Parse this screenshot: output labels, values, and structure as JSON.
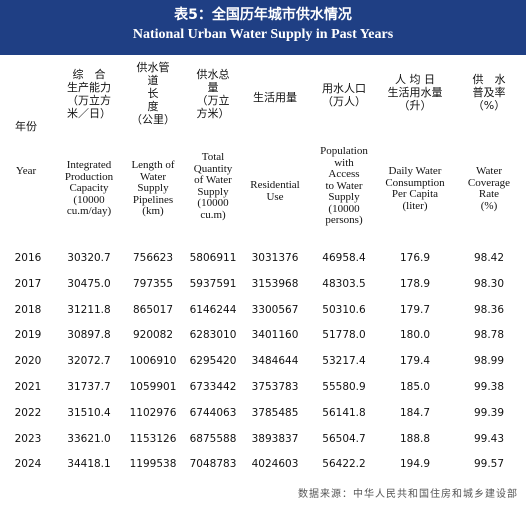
{
  "title": {
    "cn": "表5：全国历年城市供水情况",
    "en": "National Urban Water Supply in Past Years"
  },
  "headers": [
    {
      "cn": "年份",
      "en": "Year"
    },
    {
      "cn": "综　合\n生产能力\n（万立方\n米／日）",
      "en": "Integrated\nProduction\nCapacity\n(10000\ncu.m/day)"
    },
    {
      "cn": "供水管\n道\n长\n度\n（公里）",
      "en": "Length of\nWater\nSupply\nPipelines\n(km)"
    },
    {
      "cn": "供水总\n量\n（万立\n方米）",
      "en": "Total\nQuantity\nof Water\nSupply\n(10000\ncu.m)"
    },
    {
      "cn": "生活用量",
      "en": "Residential\nUse"
    },
    {
      "cn": "用水人口\n（万人）",
      "en": "Population\nwith\nAccess\nto Water\nSupply\n(10000\npersons)"
    },
    {
      "cn": "人 均 日\n生活用水量\n（升）",
      "en": "Daily Water\nConsumption\nPer Capita\n(liter)"
    },
    {
      "cn": "供　水\n普及率\n（%）",
      "en": "Water\nCoverage\nRate\n(%)"
    }
  ],
  "rows": [
    [
      "2016",
      "30320.7",
      "756623",
      "5806911",
      "3031376",
      "46958.4",
      "176.9",
      "98.42"
    ],
    [
      "2017",
      "30475.0",
      "797355",
      "5937591",
      "3153968",
      "48303.5",
      "178.9",
      "98.30"
    ],
    [
      "2018",
      "31211.8",
      "865017",
      "6146244",
      "3300567",
      "50310.6",
      "179.7",
      "98.36"
    ],
    [
      "2019",
      "30897.8",
      "920082",
      "6283010",
      "3401160",
      "51778.0",
      "180.0",
      "98.78"
    ],
    [
      "2020",
      "32072.7",
      "1006910",
      "6295420",
      "3484644",
      "53217.4",
      "179.4",
      "98.99"
    ],
    [
      "2021",
      "31737.7",
      "1059901",
      "6733442",
      "3753783",
      "55580.9",
      "185.0",
      "99.38"
    ],
    [
      "2022",
      "31510.4",
      "1102976",
      "6744063",
      "3785485",
      "56141.8",
      "184.7",
      "99.39"
    ],
    [
      "2023",
      "33621.0",
      "1153126",
      "6875588",
      "3893837",
      "56504.7",
      "188.8",
      "99.43"
    ],
    [
      "2024",
      "34418.1",
      "1199538",
      "7048783",
      "4024603",
      "56422.2",
      "194.9",
      "99.57"
    ]
  ],
  "source": "数据来源：中华人民共和国住房和城乡建设部"
}
